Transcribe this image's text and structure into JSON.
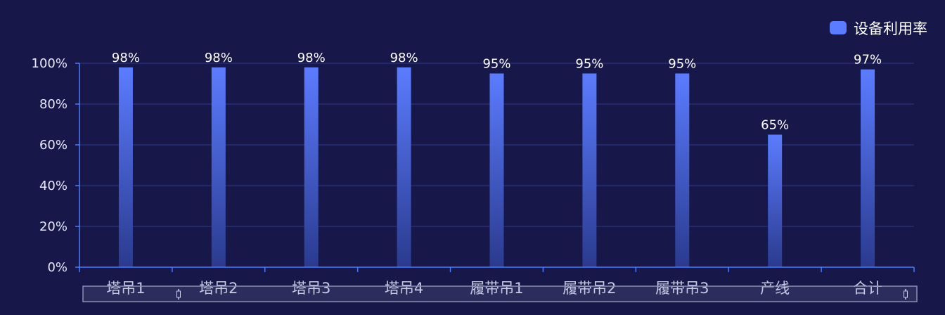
{
  "chart_data": {
    "type": "bar",
    "categories": [
      "塔吊1",
      "塔吊2",
      "塔吊3",
      "塔吊4",
      "履带吊1",
      "履带吊2",
      "履带吊3",
      "产线",
      "合计"
    ],
    "series": [
      {
        "name": "设备利用率",
        "values": [
          98,
          98,
          98,
          98,
          95,
          95,
          95,
          65,
          97
        ],
        "labels": [
          "98%",
          "98%",
          "98%",
          "98%",
          "95%",
          "95%",
          "95%",
          "65%",
          "97%"
        ]
      }
    ],
    "y_ticks": [
      "0%",
      "20%",
      "40%",
      "60%",
      "80%",
      "100%"
    ],
    "ylim": [
      0,
      100
    ],
    "grid": true,
    "legend_position": "top-right",
    "data_zoom": {
      "start": 0,
      "end": 100
    }
  },
  "colors": {
    "background": "#17174a",
    "bar_top": "#5b7cff",
    "bar_bottom": "#2a3a8e",
    "axis": "#4a7bff",
    "grid": "#2c3a8a",
    "legend_marker": "#5b7cff",
    "zoom_border": "#8a8fb0"
  }
}
